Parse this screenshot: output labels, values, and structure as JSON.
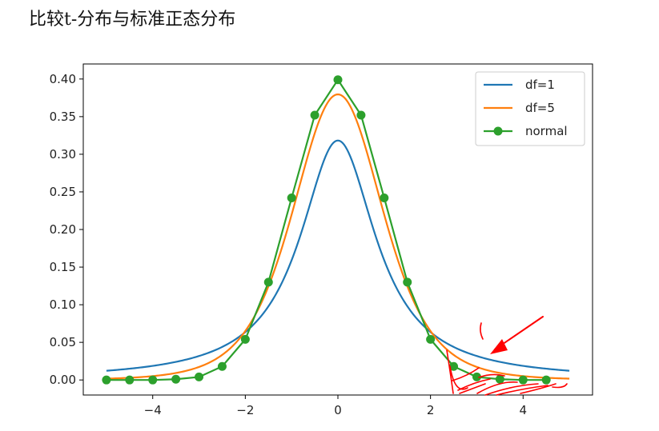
{
  "heading": "比较t-分布与标准正态分布",
  "colors": {
    "df1": "#1f77b4",
    "df5": "#ff7f0e",
    "normal": "#2ca02c",
    "annotation": "#ff0000"
  },
  "chart_data": {
    "type": "line",
    "title": "",
    "xlabel": "",
    "ylabel": "",
    "xlim": [
      -5.5,
      5.5
    ],
    "ylim": [
      -0.02,
      0.42
    ],
    "xticks": [
      -4,
      -2,
      0,
      2,
      4
    ],
    "xtick_labels": [
      "−4",
      "−2",
      "0",
      "2",
      "4"
    ],
    "yticks": [
      0.0,
      0.05,
      0.1,
      0.15,
      0.2,
      0.25,
      0.3,
      0.35,
      0.4
    ],
    "ytick_labels": [
      "0.00",
      "0.05",
      "0.10",
      "0.15",
      "0.20",
      "0.25",
      "0.30",
      "0.35",
      "0.40"
    ],
    "grid": false,
    "legend_position": "top-right",
    "series": [
      {
        "name": "df=1",
        "kind": "curve",
        "function": "t-pdf",
        "df": 1,
        "x_range": [
          -5,
          5
        ]
      },
      {
        "name": "df=5",
        "kind": "curve",
        "function": "t-pdf",
        "df": 5,
        "x_range": [
          -5,
          5
        ]
      },
      {
        "name": "normal",
        "kind": "markers",
        "x": [
          -5.0,
          -4.5,
          -4.0,
          -3.5,
          -3.0,
          -2.5,
          -2.0,
          -1.5,
          -1.0,
          -0.5,
          0.0,
          0.5,
          1.0,
          1.5,
          2.0,
          2.5,
          3.0,
          3.5,
          4.0,
          4.5
        ],
        "y": [
          0.0,
          0.0,
          0.0,
          0.001,
          0.004,
          0.018,
          0.054,
          0.13,
          0.242,
          0.352,
          0.399,
          0.352,
          0.242,
          0.13,
          0.054,
          0.018,
          0.004,
          0.001,
          0.0,
          0.0
        ]
      }
    ]
  }
}
